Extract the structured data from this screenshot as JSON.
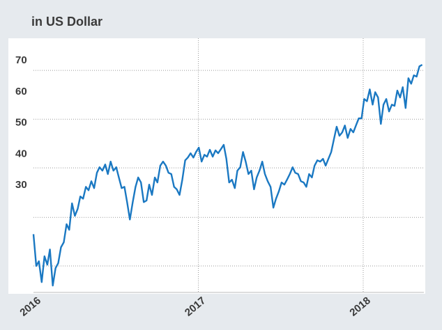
{
  "chart_data": {
    "type": "line",
    "title": "in US Dollar",
    "series": [
      {
        "color": "#1a78c2",
        "x": [
          2016.0,
          2016.017,
          2016.033,
          2016.05,
          2016.067,
          2016.084,
          2016.1,
          2016.117,
          2016.134,
          2016.15,
          2016.167,
          2016.184,
          2016.201,
          2016.217,
          2016.234,
          2016.251,
          2016.268,
          2016.284,
          2016.301,
          2016.318,
          2016.334,
          2016.351,
          2016.368,
          2016.385,
          2016.401,
          2016.418,
          2016.435,
          2016.451,
          2016.468,
          2016.485,
          2016.502,
          2016.518,
          2016.535,
          2016.552,
          2016.568,
          2016.585,
          2016.602,
          2016.619,
          2016.635,
          2016.652,
          2016.669,
          2016.686,
          2016.702,
          2016.719,
          2016.736,
          2016.752,
          2016.769,
          2016.786,
          2016.803,
          2016.819,
          2016.836,
          2016.853,
          2016.869,
          2016.886,
          2016.903,
          2016.92,
          2016.936,
          2016.953,
          2016.97,
          2016.986,
          2017.003,
          2017.02,
          2017.037,
          2017.053,
          2017.07,
          2017.087,
          2017.104,
          2017.12,
          2017.137,
          2017.154,
          2017.17,
          2017.187,
          2017.204,
          2017.221,
          2017.237,
          2017.254,
          2017.271,
          2017.287,
          2017.304,
          2017.321,
          2017.338,
          2017.354,
          2017.371,
          2017.388,
          2017.404,
          2017.421,
          2017.438,
          2017.455,
          2017.471,
          2017.488,
          2017.505,
          2017.522,
          2017.538,
          2017.555,
          2017.572,
          2017.588,
          2017.605,
          2017.622,
          2017.639,
          2017.655,
          2017.672,
          2017.689,
          2017.705,
          2017.722,
          2017.739,
          2017.756,
          2017.772,
          2017.789,
          2017.806,
          2017.822,
          2017.839,
          2017.856,
          2017.873,
          2017.889,
          2017.906,
          2017.923,
          2017.94,
          2017.956,
          2017.973,
          2017.99,
          2018.006,
          2018.023,
          2018.04,
          2018.057,
          2018.073,
          2018.09,
          2018.107,
          2018.123,
          2018.14,
          2018.157,
          2018.174,
          2018.19,
          2018.207,
          2018.224,
          2018.24,
          2018.257,
          2018.274,
          2018.291,
          2018.307,
          2018.324,
          2018.341,
          2018.358
        ],
        "values": [
          14.3,
          4.1,
          5.6,
          -1.1,
          7.2,
          4.5,
          9.4,
          -2.2,
          3.4,
          5.0,
          10.1,
          11.7,
          17.5,
          15.7,
          24.2,
          20.2,
          22.4,
          26.4,
          25.7,
          29.5,
          28.4,
          31.3,
          29.1,
          34.0,
          35.8,
          34.7,
          36.7,
          33.6,
          37.6,
          34.7,
          35.8,
          32.5,
          29.1,
          29.5,
          24.6,
          19.0,
          24.6,
          29.5,
          32.5,
          30.9,
          24.6,
          25.1,
          30.2,
          26.9,
          32.5,
          30.9,
          36.3,
          37.6,
          36.3,
          34.0,
          33.6,
          29.5,
          28.7,
          26.9,
          31.8,
          38.0,
          38.9,
          40.3,
          38.9,
          40.7,
          42.1,
          37.6,
          39.8,
          39.2,
          41.4,
          39.2,
          41.2,
          40.3,
          41.6,
          43.0,
          38.5,
          30.9,
          31.8,
          29.1,
          34.7,
          35.8,
          40.7,
          37.6,
          33.6,
          34.7,
          28.7,
          32.5,
          34.7,
          37.6,
          33.6,
          31.3,
          29.5,
          22.8,
          25.7,
          28.0,
          30.9,
          30.2,
          31.8,
          33.6,
          35.8,
          34.0,
          33.6,
          31.3,
          30.9,
          29.5,
          33.6,
          32.5,
          36.3,
          38.0,
          37.6,
          38.5,
          36.3,
          38.5,
          40.7,
          44.7,
          48.8,
          45.9,
          47.0,
          49.2,
          45.2,
          48.1,
          47.0,
          49.2,
          51.5,
          51.5,
          57.7,
          57.0,
          60.8,
          55.9,
          59.9,
          58.2,
          49.7,
          55.9,
          57.7,
          53.7,
          55.9,
          55.5,
          60.4,
          58.2,
          61.5,
          54.8,
          64.4,
          62.6,
          65.3,
          64.9,
          68.2,
          68.7
        ]
      }
    ],
    "xlim": [
      2016,
      2018.368
    ],
    "xticks": [
      2016,
      2017,
      2018
    ],
    "ylim": [
      -4.4,
      77.2
    ],
    "yticks": [
      70,
      60,
      50,
      40,
      30
    ],
    "ygrid": [
      66.9,
      51.2,
      35.6,
      19.7,
      4.1
    ],
    "grid": true
  }
}
